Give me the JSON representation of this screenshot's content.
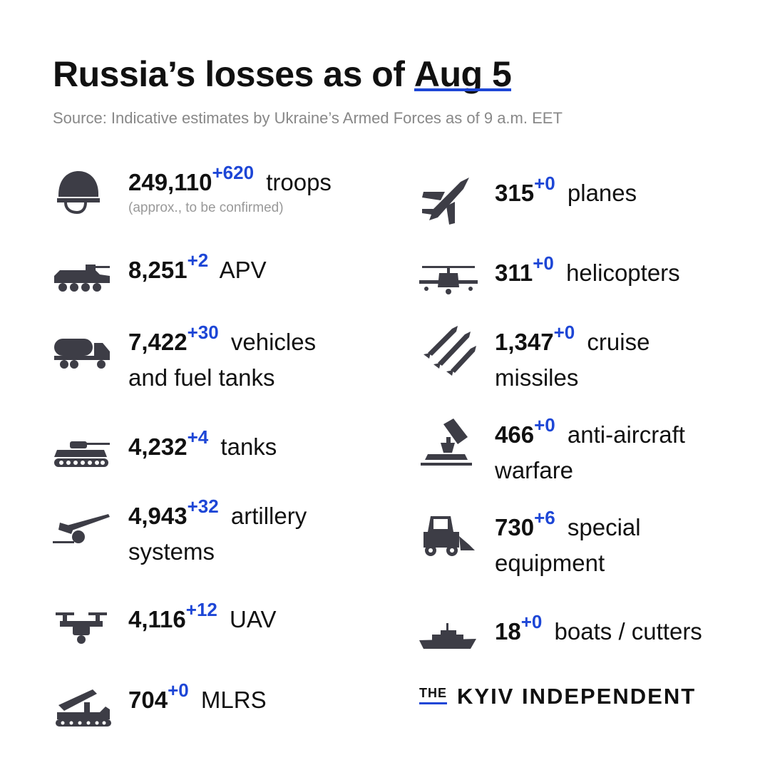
{
  "header": {
    "title_main": "Russia’s losses as of",
    "title_date": "Aug 5",
    "source": "Source: Indicative estimates by Ukraine’s Armed Forces as of 9 a.m. EET"
  },
  "left": [
    {
      "icon": "helmet-icon",
      "value": "249,110",
      "delta": "+620",
      "label": "troops",
      "label2": "",
      "note": "(approx., to be confirmed)"
    },
    {
      "icon": "apv-icon",
      "value": "8,251",
      "delta": "+2",
      "label": "APV",
      "label2": ""
    },
    {
      "icon": "fuel-truck-icon",
      "value": "7,422",
      "delta": "+30",
      "label": "vehicles",
      "label2": "and fuel tanks"
    },
    {
      "icon": "tank-icon",
      "value": "4,232",
      "delta": "+4",
      "label": "tanks",
      "label2": ""
    },
    {
      "icon": "artillery-icon",
      "value": "4,943",
      "delta": "+32",
      "label": "artillery",
      "label2": "systems"
    },
    {
      "icon": "drone-icon",
      "value": "4,116",
      "delta": "+12",
      "label": "UAV",
      "label2": ""
    },
    {
      "icon": "mlrs-icon",
      "value": "704",
      "delta": "+0",
      "label": "MLRS",
      "label2": ""
    }
  ],
  "right": [
    {
      "icon": "jet-icon",
      "value": "315",
      "delta": "+0",
      "label": "planes",
      "label2": ""
    },
    {
      "icon": "helicopter-icon",
      "value": "311",
      "delta": "+0",
      "label": "helicopters",
      "label2": ""
    },
    {
      "icon": "missiles-icon",
      "value": "1,347",
      "delta": "+0",
      "label": "cruise",
      "label2": "missiles"
    },
    {
      "icon": "anti-aircraft-icon",
      "value": "466",
      "delta": "+0",
      "label": "anti-aircraft",
      "label2": "warfare"
    },
    {
      "icon": "loader-icon",
      "value": "730",
      "delta": "+6",
      "label": "special",
      "label2": "equipment"
    },
    {
      "icon": "ship-icon",
      "value": "18",
      "delta": "+0",
      "label": "boats / cutters",
      "label2": ""
    }
  ],
  "brand": {
    "the": "THE",
    "name": "KYIV INDEPENDENT"
  },
  "colors": {
    "accent": "#1d46d6",
    "icon": "#3d3d46",
    "text": "#111111",
    "muted": "#888888"
  }
}
